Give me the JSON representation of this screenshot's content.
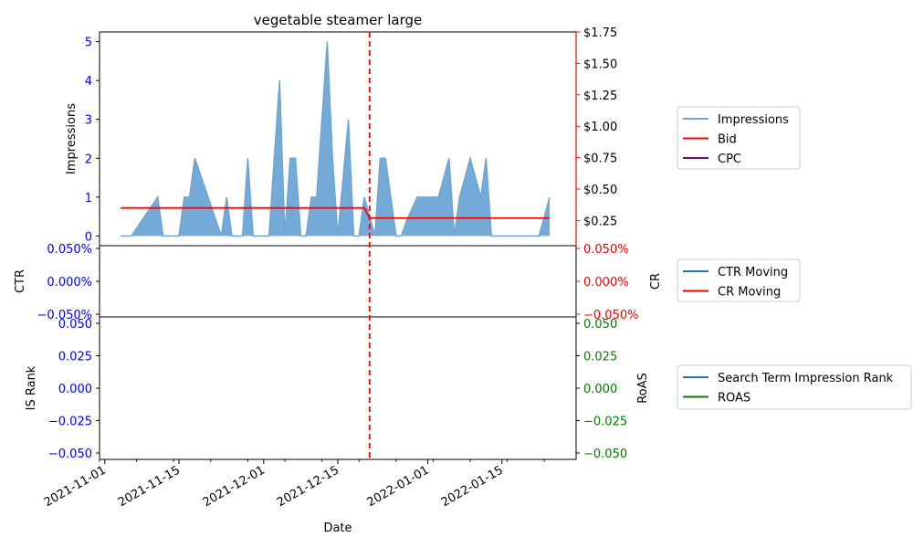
{
  "chart_data": {
    "type": "area",
    "title": "vegetable steamer large",
    "xlabel": "Date",
    "x_tick_labels": [
      "2021-11-01",
      "2021-11-15",
      "2021-12-01",
      "2021-12-15",
      "2022-01-01",
      "2022-01-15"
    ],
    "x_range": [
      "2021-10-31",
      "2022-01-29"
    ],
    "event_line_date": "2021-12-21",
    "colors": {
      "impressions": "#6fa5cf",
      "impressions_fill": "#5b9bd1",
      "bid": "#ff0000",
      "cpc": "#800080",
      "ctr": "#1f77b4",
      "cr": "#ff0000",
      "is_rank": "#1f77b4",
      "roas": "#008000",
      "left_axis_text": "#0000ff",
      "right_axis_text_top": "#ff0000",
      "right_axis_text_bottom": "#008000",
      "event_line": "#ff0000"
    },
    "panels": [
      {
        "name": "impressions-panel",
        "ylabel_left": "Impressions",
        "ylim_left": [
          -0.25,
          5.25
        ],
        "yticks_left": [
          "0",
          "1",
          "2",
          "3",
          "4",
          "5"
        ],
        "ylim_right": [
          0.05,
          1.75
        ],
        "yticks_right": [
          "$0.25",
          "$0.50",
          "$0.75",
          "$1.00",
          "$1.25",
          "$1.50",
          "$1.75"
        ],
        "legend": [
          "Impressions",
          "Bid",
          "CPC"
        ]
      },
      {
        "name": "rate-panel",
        "ylabel_left": "CTR",
        "ylabel_right": "CR",
        "yticks_left": [
          "0.050%",
          "0.000%",
          "−0.050%"
        ],
        "yticks_right": [
          "0.050%",
          "0.000%",
          "−0.050%"
        ],
        "legend": [
          "CTR Moving",
          "CR Moving"
        ]
      },
      {
        "name": "rank-panel",
        "ylabel_left": "IS Rank",
        "ylabel_right": "RoAS",
        "yticks_left": [
          "0.050",
          "0.025",
          "0.000",
          "−0.025",
          "−0.050"
        ],
        "yticks_right": [
          "0.050",
          "0.025",
          "0.000",
          "−0.025",
          "−0.050"
        ],
        "legend": [
          "Search Term Impression Rank",
          "ROAS"
        ]
      }
    ],
    "series": [
      {
        "name": "Impressions",
        "x": [
          "2021-11-04",
          "2021-11-06",
          "2021-11-11",
          "2021-11-12",
          "2021-11-15",
          "2021-11-16",
          "2021-11-17",
          "2021-11-18",
          "2021-11-23",
          "2021-11-24",
          "2021-11-25",
          "2021-11-27",
          "2021-11-28",
          "2021-11-29",
          "2021-12-02",
          "2021-12-03",
          "2021-12-04",
          "2021-12-05",
          "2021-12-06",
          "2021-12-07",
          "2021-12-08",
          "2021-12-09",
          "2021-12-10",
          "2021-12-11",
          "2021-12-13",
          "2021-12-14",
          "2021-12-15",
          "2021-12-16",
          "2021-12-17",
          "2021-12-18",
          "2021-12-19",
          "2021-12-20",
          "2021-12-21",
          "2021-12-22",
          "2021-12-23",
          "2021-12-24",
          "2021-12-25",
          "2021-12-26",
          "2021-12-27",
          "2021-12-28",
          "2021-12-30",
          "2022-01-01",
          "2022-01-03",
          "2022-01-05",
          "2022-01-06",
          "2022-01-07",
          "2022-01-09",
          "2022-01-11",
          "2022-01-12",
          "2022-01-13",
          "2022-01-20",
          "2022-01-22",
          "2022-01-24"
        ],
        "values": [
          0,
          0,
          1,
          0,
          0,
          1,
          1,
          2,
          0,
          1,
          0,
          0,
          2,
          0,
          0,
          2,
          4,
          0,
          2,
          2,
          0,
          0,
          1,
          1,
          5,
          2,
          0,
          1.5,
          3,
          0,
          0,
          1,
          0.5,
          0,
          2,
          2,
          1,
          0,
          0,
          0.4,
          1,
          1,
          1,
          2,
          0,
          1,
          2,
          1,
          2,
          0,
          0,
          0,
          1
        ]
      },
      {
        "name": "Bid",
        "x": [
          "2021-11-04",
          "2021-12-19",
          "2021-12-20",
          "2021-12-21",
          "2022-01-24"
        ],
        "values": [
          0.35,
          0.35,
          0.35,
          0.27,
          0.27
        ]
      },
      {
        "name": "CPC",
        "x": [],
        "values": []
      },
      {
        "name": "CTR Moving",
        "x": [],
        "values": []
      },
      {
        "name": "CR Moving",
        "x": [],
        "values": []
      },
      {
        "name": "Search Term Impression Rank",
        "x": [],
        "values": []
      },
      {
        "name": "ROAS",
        "x": [],
        "values": []
      }
    ]
  }
}
